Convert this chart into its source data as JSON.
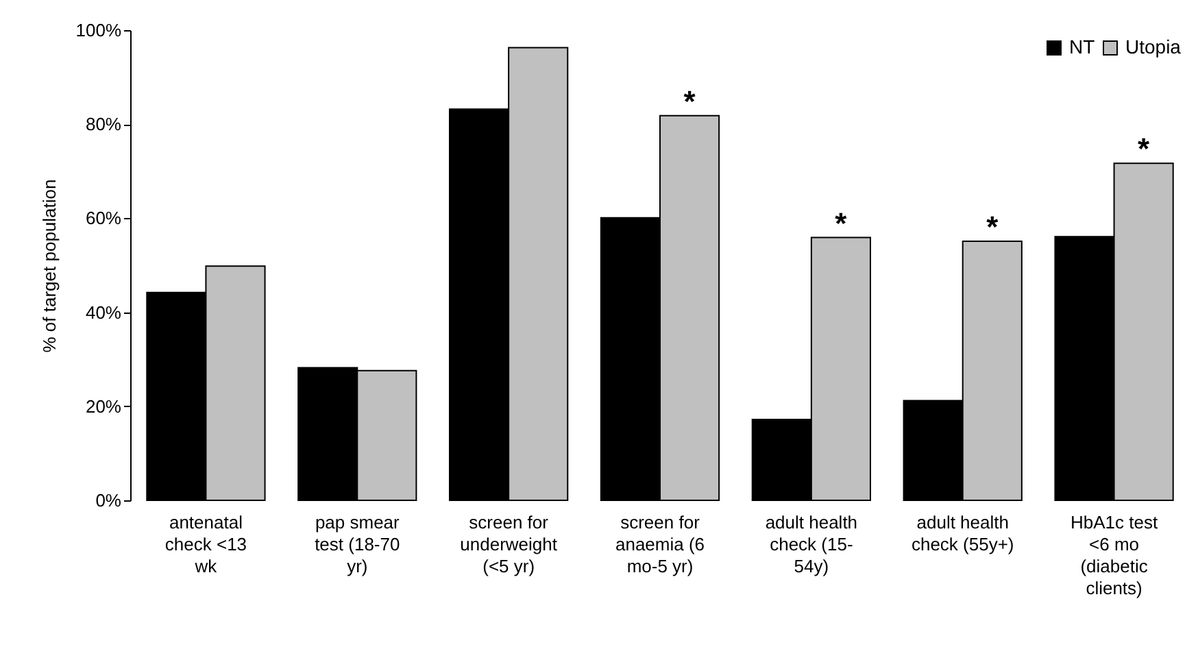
{
  "chart_data": {
    "type": "bar",
    "ylabel": "% of target population",
    "categories": [
      "antenatal check <13 wk",
      "pap smear test (18-70 yr)",
      "screen for underweight (<5 yr)",
      "screen for anaemia (6 mo-5 yr)",
      "adult health check (15-54y)",
      "adult health check (55y+)",
      "HbA1c test <6 mo (diabetic clients)"
    ],
    "series": [
      {
        "name": "NT",
        "color": "#000000",
        "values": [
          44.2,
          28.2,
          83.2,
          60.1,
          17.2,
          21.2,
          56.1
        ]
      },
      {
        "name": "Utopia",
        "color": "#c0c0c0",
        "values": [
          49.8,
          27.6,
          96.3,
          81.8,
          55.9,
          55.1,
          71.7
        ]
      }
    ],
    "ylim": [
      0,
      100
    ],
    "yticks": [
      {
        "value": 0,
        "label": "0%"
      },
      {
        "value": 20,
        "label": "20%"
      },
      {
        "value": 40,
        "label": "40%"
      },
      {
        "value": 60,
        "label": "60%"
      },
      {
        "value": 80,
        "label": "80%"
      },
      {
        "value": 100,
        "label": "100%"
      }
    ],
    "annotations": [
      {
        "text": "*",
        "x": "screen for anaemia (6 mo-5 yr)",
        "y": 81.8
      },
      {
        "text": "*",
        "x": "adult health check (15-54y)",
        "y": 55.9
      },
      {
        "text": "*",
        "x": "adult health check (55y+)",
        "y": 55.1
      },
      {
        "text": "*",
        "x": "HbA1c test <6 mo (diabetic clients)",
        "y": 71.7
      }
    ],
    "grid": false,
    "legend": "top right"
  }
}
